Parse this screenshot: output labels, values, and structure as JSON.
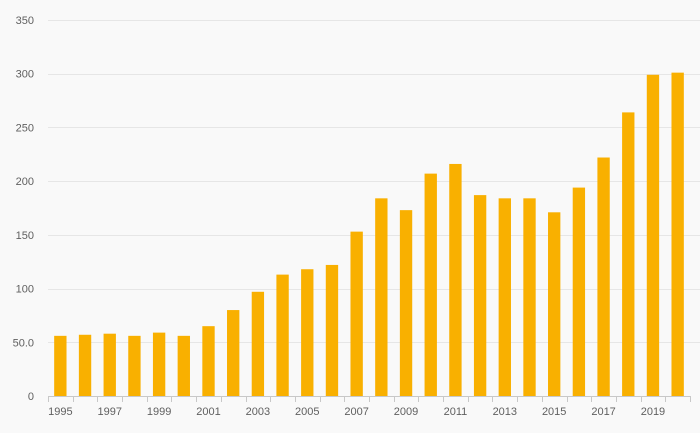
{
  "chart_data": {
    "type": "bar",
    "title": "",
    "xlabel": "",
    "ylabel": "",
    "ylim": [
      0,
      350
    ],
    "yticks": [
      "0",
      "50.0",
      "100",
      "150",
      "200",
      "250",
      "300",
      "350"
    ],
    "ytick_values": [
      0,
      50,
      100,
      150,
      200,
      250,
      300,
      350
    ],
    "categories": [
      "1995",
      "1996",
      "1997",
      "1998",
      "1999",
      "2000",
      "2001",
      "2002",
      "2003",
      "2004",
      "2005",
      "2006",
      "2007",
      "2008",
      "2009",
      "2010",
      "2011",
      "2012",
      "2013",
      "2014",
      "2015",
      "2016",
      "2017",
      "2018",
      "2019",
      "2020"
    ],
    "xtick_labels": [
      "1995",
      "1997",
      "1999",
      "2001",
      "2003",
      "2005",
      "2007",
      "2009",
      "2011",
      "2013",
      "2015",
      "2017",
      "2019"
    ],
    "values": [
      56,
      57,
      58,
      56,
      59,
      56,
      65,
      80,
      97,
      113,
      118,
      122,
      153,
      184,
      173,
      207,
      216,
      187,
      184,
      184,
      171,
      194,
      222,
      264,
      299,
      301
    ],
    "bar_color": "#f9b000",
    "grid": true,
    "legend": "none"
  }
}
